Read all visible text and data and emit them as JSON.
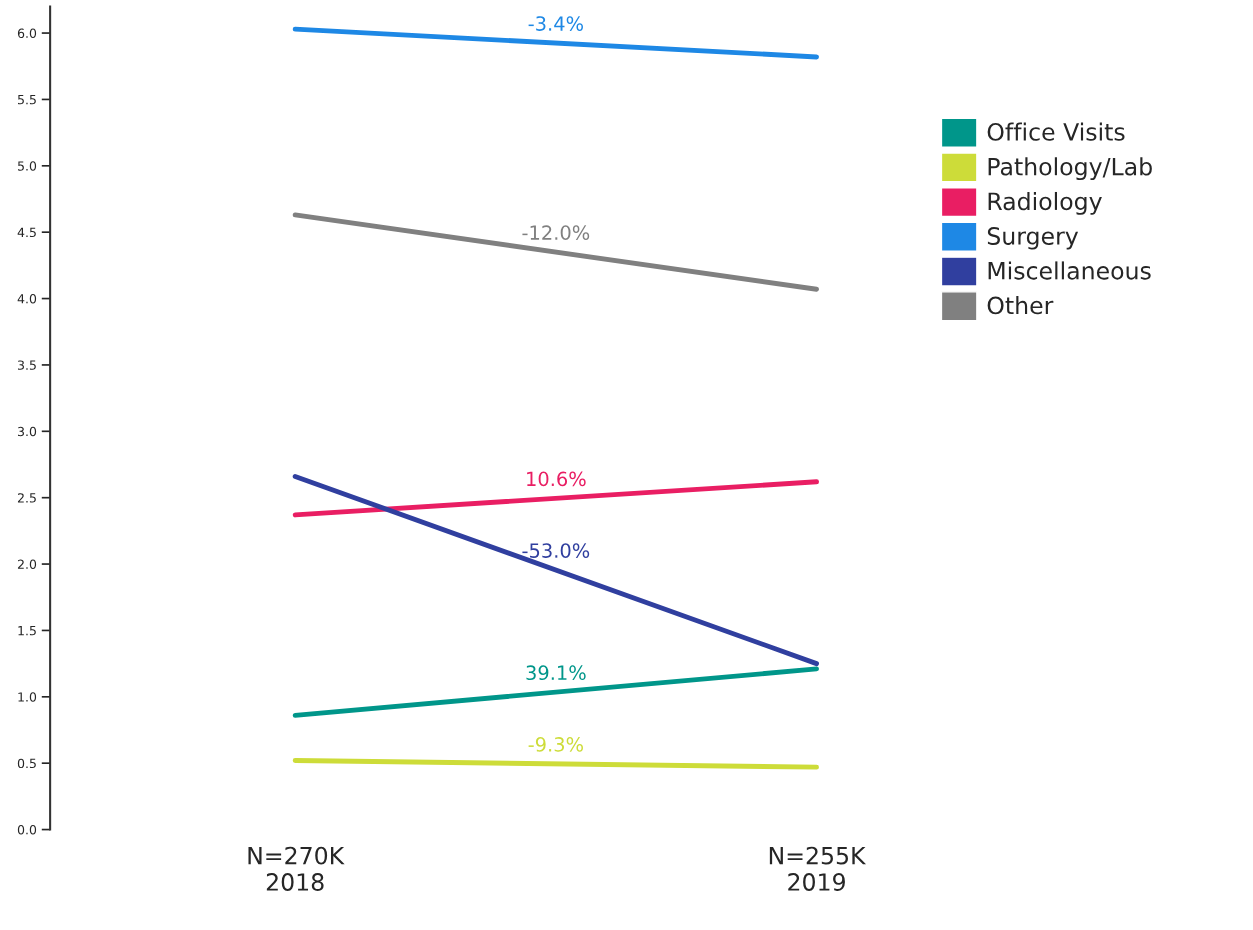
{
  "chart_data": {
    "type": "line",
    "categories": [
      "N=270K\n2018",
      "N=255K\n2019"
    ],
    "series": [
      {
        "name": "Office Visits",
        "color": "#00968a",
        "values": [
          0.86,
          1.21
        ]
      },
      {
        "name": "Pathology/Lab",
        "color": "#cddc39",
        "values": [
          0.52,
          0.47
        ]
      },
      {
        "name": "Radiology",
        "color": "#e91e63",
        "values": [
          2.37,
          2.62
        ]
      },
      {
        "name": "Surgery",
        "color": "#1e88e5",
        "values": [
          6.03,
          5.82
        ]
      },
      {
        "name": "Miscellaneous",
        "color": "#303f9f",
        "values": [
          2.66,
          1.25
        ]
      },
      {
        "name": "Other",
        "color": "#808080",
        "values": [
          4.63,
          4.07
        ]
      }
    ],
    "annotations": [
      "39.1%",
      "-9.3%",
      "10.6%",
      "-3.4%",
      "-53.0%",
      "-12.0%"
    ],
    "ylim": [
      0,
      6.2
    ],
    "yticks": [
      {
        "value": 0,
        "label": "0.0"
      },
      {
        "value": 0.5,
        "label": "0.5"
      },
      {
        "value": 1,
        "label": "1.0"
      },
      {
        "value": 1.5,
        "label": "1.5"
      },
      {
        "value": 2,
        "label": "2.0"
      },
      {
        "value": 2.5,
        "label": "2.5"
      },
      {
        "value": 3,
        "label": "3.0"
      },
      {
        "value": 3.5,
        "label": "3.5"
      },
      {
        "value": 4,
        "label": "4.0"
      },
      {
        "value": 4.5,
        "label": "4.5"
      },
      {
        "value": 5,
        "label": "5.0"
      },
      {
        "value": 5.5,
        "label": "5.5"
      },
      {
        "value": 6,
        "label": "6.0"
      }
    ],
    "grid": false,
    "legend": "right",
    "marker": "none"
  }
}
